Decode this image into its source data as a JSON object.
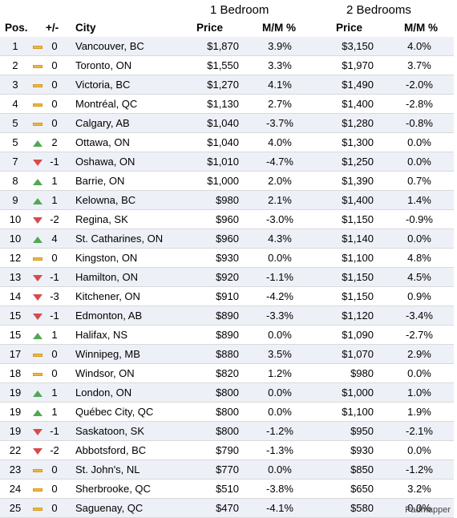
{
  "group_headers": {
    "one_bedroom": "1 Bedroom",
    "two_bedrooms": "2 Bedrooms"
  },
  "columns": {
    "pos": "Pos.",
    "change": "+/-",
    "city": "City",
    "price1": "Price",
    "mm1": "M/M %",
    "price2": "Price",
    "mm2": "M/M %"
  },
  "icons": {
    "same": "dash-icon",
    "up": "triangle-up-icon",
    "down": "triangle-down-icon"
  },
  "colors": {
    "up": "#52a852",
    "down": "#d64b4b",
    "same": "#f0b840",
    "row_stripe": "#eef0f8"
  },
  "rows": [
    {
      "pos": "1",
      "trend": "same",
      "change": "0",
      "city": "Vancouver, BC",
      "price1": "$1,870",
      "mm1": "3.9%",
      "price2": "$3,150",
      "mm2": "4.0%"
    },
    {
      "pos": "2",
      "trend": "same",
      "change": "0",
      "city": "Toronto, ON",
      "price1": "$1,550",
      "mm1": "3.3%",
      "price2": "$1,970",
      "mm2": "3.7%"
    },
    {
      "pos": "3",
      "trend": "same",
      "change": "0",
      "city": "Victoria, BC",
      "price1": "$1,270",
      "mm1": "4.1%",
      "price2": "$1,490",
      "mm2": "-2.0%"
    },
    {
      "pos": "4",
      "trend": "same",
      "change": "0",
      "city": "Montréal, QC",
      "price1": "$1,130",
      "mm1": "2.7%",
      "price2": "$1,400",
      "mm2": "-2.8%"
    },
    {
      "pos": "5",
      "trend": "same",
      "change": "0",
      "city": "Calgary, AB",
      "price1": "$1,040",
      "mm1": "-3.7%",
      "price2": "$1,280",
      "mm2": "-0.8%"
    },
    {
      "pos": "5",
      "trend": "up",
      "change": "2",
      "city": "Ottawa, ON",
      "price1": "$1,040",
      "mm1": "4.0%",
      "price2": "$1,300",
      "mm2": "0.0%"
    },
    {
      "pos": "7",
      "trend": "down",
      "change": "-1",
      "city": "Oshawa, ON",
      "price1": "$1,010",
      "mm1": "-4.7%",
      "price2": "$1,250",
      "mm2": "0.0%"
    },
    {
      "pos": "8",
      "trend": "up",
      "change": "1",
      "city": "Barrie, ON",
      "price1": "$1,000",
      "mm1": "2.0%",
      "price2": "$1,390",
      "mm2": "0.7%"
    },
    {
      "pos": "9",
      "trend": "up",
      "change": "1",
      "city": "Kelowna, BC",
      "price1": "$980",
      "mm1": "2.1%",
      "price2": "$1,400",
      "mm2": "1.4%"
    },
    {
      "pos": "10",
      "trend": "down",
      "change": "-2",
      "city": "Regina, SK",
      "price1": "$960",
      "mm1": "-3.0%",
      "price2": "$1,150",
      "mm2": "-0.9%"
    },
    {
      "pos": "10",
      "trend": "up",
      "change": "4",
      "city": "St. Catharines, ON",
      "price1": "$960",
      "mm1": "4.3%",
      "price2": "$1,140",
      "mm2": "0.0%"
    },
    {
      "pos": "12",
      "trend": "same",
      "change": "0",
      "city": "Kingston, ON",
      "price1": "$930",
      "mm1": "0.0%",
      "price2": "$1,100",
      "mm2": "4.8%"
    },
    {
      "pos": "13",
      "trend": "down",
      "change": "-1",
      "city": "Hamilton, ON",
      "price1": "$920",
      "mm1": "-1.1%",
      "price2": "$1,150",
      "mm2": "4.5%"
    },
    {
      "pos": "14",
      "trend": "down",
      "change": "-3",
      "city": "Kitchener, ON",
      "price1": "$910",
      "mm1": "-4.2%",
      "price2": "$1,150",
      "mm2": "0.9%"
    },
    {
      "pos": "15",
      "trend": "down",
      "change": "-1",
      "city": "Edmonton, AB",
      "price1": "$890",
      "mm1": "-3.3%",
      "price2": "$1,120",
      "mm2": "-3.4%"
    },
    {
      "pos": "15",
      "trend": "up",
      "change": "1",
      "city": "Halifax, NS",
      "price1": "$890",
      "mm1": "0.0%",
      "price2": "$1,090",
      "mm2": "-2.7%"
    },
    {
      "pos": "17",
      "trend": "same",
      "change": "0",
      "city": "Winnipeg, MB",
      "price1": "$880",
      "mm1": "3.5%",
      "price2": "$1,070",
      "mm2": "2.9%"
    },
    {
      "pos": "18",
      "trend": "same",
      "change": "0",
      "city": "Windsor, ON",
      "price1": "$820",
      "mm1": "1.2%",
      "price2": "$980",
      "mm2": "0.0%"
    },
    {
      "pos": "19",
      "trend": "up",
      "change": "1",
      "city": "London, ON",
      "price1": "$800",
      "mm1": "0.0%",
      "price2": "$1,000",
      "mm2": "1.0%"
    },
    {
      "pos": "19",
      "trend": "up",
      "change": "1",
      "city": "Québec City, QC",
      "price1": "$800",
      "mm1": "0.0%",
      "price2": "$1,100",
      "mm2": "1.9%"
    },
    {
      "pos": "19",
      "trend": "down",
      "change": "-1",
      "city": "Saskatoon, SK",
      "price1": "$800",
      "mm1": "-1.2%",
      "price2": "$950",
      "mm2": "-2.1%"
    },
    {
      "pos": "22",
      "trend": "down",
      "change": "-2",
      "city": "Abbotsford, BC",
      "price1": "$790",
      "mm1": "-1.3%",
      "price2": "$930",
      "mm2": "0.0%"
    },
    {
      "pos": "23",
      "trend": "same",
      "change": "0",
      "city": "St. John's, NL",
      "price1": "$770",
      "mm1": "0.0%",
      "price2": "$850",
      "mm2": "-1.2%"
    },
    {
      "pos": "24",
      "trend": "same",
      "change": "0",
      "city": "Sherbrooke, QC",
      "price1": "$510",
      "mm1": "-3.8%",
      "price2": "$650",
      "mm2": "3.2%"
    },
    {
      "pos": "25",
      "trend": "same",
      "change": "0",
      "city": "Saguenay, QC",
      "price1": "$470",
      "mm1": "-4.1%",
      "price2": "$580",
      "mm2": "0.0%"
    }
  ],
  "source": "Padmapper"
}
